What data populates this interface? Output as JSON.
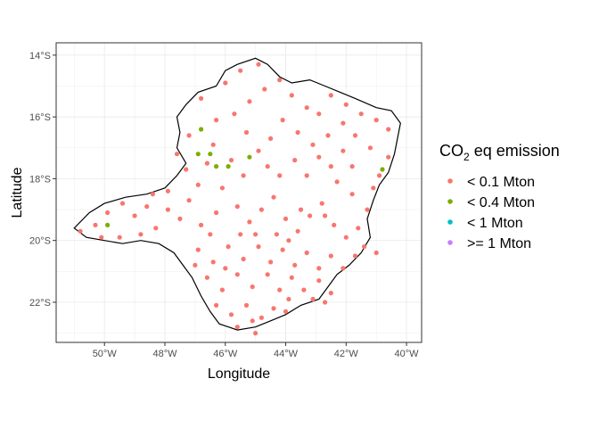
{
  "chart_data": {
    "type": "scatter",
    "map_region": "municipalities outline",
    "xlabel": "Longitude",
    "ylabel": "Latitude",
    "xlim": [
      -51.6,
      -39.5
    ],
    "ylim": [
      -23.3,
      -13.6
    ],
    "x_ticks": [
      -50,
      -48,
      -46,
      -44,
      -42,
      -40
    ],
    "x_tick_labels": [
      "50°W",
      "48°W",
      "46°W",
      "44°W",
      "42°W",
      "40°W"
    ],
    "y_ticks": [
      -14,
      -16,
      -18,
      -20,
      -22
    ],
    "y_tick_labels": [
      "14°S",
      "16°S",
      "18°S",
      "20°S",
      "22°S"
    ],
    "grid": true,
    "legend": {
      "title_main": "CO",
      "title_sub": "2",
      "title_rest": " eq emission",
      "position": "right"
    },
    "series": [
      {
        "name": "< 0.1 Mton",
        "color": "#F8766D",
        "points": [
          [
            -50.8,
            -19.7
          ],
          [
            -50.3,
            -19.5
          ],
          [
            -49.9,
            -19.1
          ],
          [
            -49.4,
            -18.8
          ],
          [
            -49.0,
            -19.2
          ],
          [
            -48.6,
            -18.9
          ],
          [
            -48.3,
            -19.6
          ],
          [
            -48.8,
            -19.8
          ],
          [
            -49.5,
            -19.9
          ],
          [
            -50.1,
            -19.9
          ],
          [
            -47.9,
            -19.0
          ],
          [
            -47.5,
            -19.3
          ],
          [
            -47.2,
            -18.7
          ],
          [
            -46.8,
            -19.5
          ],
          [
            -46.3,
            -19.1
          ],
          [
            -46.9,
            -18.2
          ],
          [
            -47.3,
            -17.7
          ],
          [
            -46.6,
            -17.5
          ],
          [
            -46.1,
            -18.3
          ],
          [
            -45.6,
            -18.9
          ],
          [
            -45.2,
            -19.4
          ],
          [
            -44.8,
            -19.0
          ],
          [
            -44.4,
            -18.6
          ],
          [
            -44.0,
            -19.3
          ],
          [
            -43.6,
            -19.7
          ],
          [
            -43.2,
            -19.2
          ],
          [
            -42.8,
            -18.8
          ],
          [
            -42.4,
            -19.5
          ],
          [
            -42.0,
            -19.9
          ],
          [
            -41.6,
            -19.6
          ],
          [
            -41.3,
            -19.0
          ],
          [
            -41.8,
            -18.5
          ],
          [
            -42.3,
            -18.1
          ],
          [
            -41.1,
            -18.3
          ],
          [
            -40.9,
            -17.9
          ],
          [
            -40.6,
            -17.3
          ],
          [
            -41.2,
            -17.0
          ],
          [
            -41.7,
            -16.6
          ],
          [
            -42.1,
            -16.2
          ],
          [
            -42.6,
            -16.6
          ],
          [
            -43.1,
            -16.9
          ],
          [
            -43.6,
            -16.5
          ],
          [
            -44.1,
            -16.1
          ],
          [
            -44.5,
            -16.7
          ],
          [
            -44.9,
            -17.1
          ],
          [
            -45.3,
            -16.5
          ],
          [
            -45.7,
            -15.9
          ],
          [
            -45.2,
            -15.5
          ],
          [
            -44.7,
            -15.1
          ],
          [
            -44.2,
            -14.8
          ],
          [
            -43.8,
            -15.3
          ],
          [
            -43.3,
            -15.7
          ],
          [
            -42.9,
            -15.9
          ],
          [
            -42.5,
            -15.3
          ],
          [
            -42.0,
            -15.6
          ],
          [
            -41.5,
            -15.9
          ],
          [
            -41.0,
            -16.1
          ],
          [
            -40.6,
            -16.4
          ],
          [
            -46.3,
            -16.1
          ],
          [
            -46.8,
            -15.4
          ],
          [
            -46.0,
            -14.9
          ],
          [
            -45.5,
            -14.5
          ],
          [
            -44.9,
            -14.3
          ],
          [
            -47.2,
            -16.6
          ],
          [
            -47.6,
            -17.2
          ],
          [
            -46.4,
            -16.9
          ],
          [
            -45.8,
            -17.4
          ],
          [
            -45.4,
            -17.9
          ],
          [
            -44.6,
            -17.6
          ],
          [
            -44.2,
            -17.9
          ],
          [
            -43.7,
            -17.4
          ],
          [
            -43.3,
            -17.9
          ],
          [
            -42.9,
            -17.3
          ],
          [
            -42.5,
            -17.6
          ],
          [
            -42.1,
            -17.1
          ],
          [
            -41.8,
            -17.6
          ],
          [
            -46.9,
            -20.3
          ],
          [
            -46.4,
            -20.7
          ],
          [
            -45.9,
            -20.2
          ],
          [
            -45.4,
            -20.6
          ],
          [
            -44.9,
            -20.2
          ],
          [
            -44.5,
            -20.7
          ],
          [
            -44.1,
            -20.3
          ],
          [
            -43.7,
            -20.8
          ],
          [
            -43.3,
            -20.4
          ],
          [
            -42.9,
            -20.9
          ],
          [
            -42.5,
            -20.5
          ],
          [
            -42.1,
            -20.9
          ],
          [
            -41.7,
            -20.5
          ],
          [
            -46.6,
            -21.2
          ],
          [
            -46.1,
            -21.6
          ],
          [
            -45.6,
            -21.1
          ],
          [
            -45.1,
            -21.5
          ],
          [
            -44.6,
            -21.1
          ],
          [
            -44.2,
            -21.6
          ],
          [
            -43.8,
            -21.2
          ],
          [
            -43.4,
            -21.6
          ],
          [
            -42.9,
            -21.3
          ],
          [
            -42.5,
            -21.7
          ],
          [
            -46.3,
            -22.1
          ],
          [
            -45.8,
            -22.4
          ],
          [
            -45.3,
            -22.1
          ],
          [
            -44.8,
            -22.5
          ],
          [
            -44.4,
            -22.2
          ],
          [
            -43.9,
            -21.9
          ],
          [
            -45.6,
            -22.8
          ],
          [
            -45.1,
            -22.6
          ],
          [
            -46.0,
            -20.9
          ],
          [
            -43.1,
            -21.9
          ],
          [
            -42.7,
            -22.0
          ],
          [
            -44.3,
            -19.8
          ],
          [
            -43.9,
            -20.0
          ],
          [
            -43.5,
            -19.0
          ],
          [
            -45.0,
            -19.8
          ],
          [
            -45.5,
            -19.8
          ],
          [
            -46.5,
            -19.8
          ],
          [
            -47.0,
            -20.8
          ],
          [
            -47.9,
            -18.4
          ],
          [
            -48.4,
            -18.5
          ],
          [
            -41.4,
            -20.2
          ],
          [
            -41.0,
            -20.4
          ],
          [
            -42.7,
            -19.2
          ],
          [
            -44.0,
            -22.3
          ],
          [
            -45.0,
            -23.0
          ]
        ]
      },
      {
        "name": "< 0.4 Mton",
        "color": "#7CAE00",
        "points": [
          [
            -46.8,
            -16.4
          ],
          [
            -46.9,
            -17.2
          ],
          [
            -46.5,
            -17.2
          ],
          [
            -45.9,
            -17.6
          ],
          [
            -45.2,
            -17.3
          ],
          [
            -49.9,
            -19.5
          ],
          [
            -40.8,
            -17.7
          ],
          [
            -46.3,
            -17.6
          ]
        ]
      },
      {
        "name": "< 1 Mton",
        "color": "#00BFC4",
        "points": []
      },
      {
        "name": ">= 1 Mton",
        "color": "#C77CFF",
        "points": []
      }
    ]
  }
}
